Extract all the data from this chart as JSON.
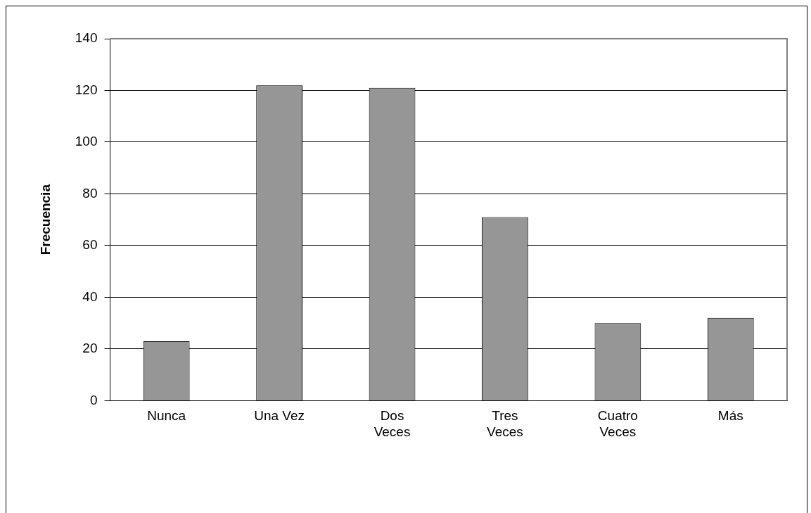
{
  "chart_data": {
    "type": "bar",
    "ylabel": "Frecuencia",
    "categories": [
      "Nunca",
      "Una Vez",
      "Dos Veces",
      "Tres Veces",
      "Cuatro Veces",
      "Más"
    ],
    "values": [
      23,
      122,
      121,
      71,
      30,
      32
    ],
    "color": "#969696",
    "ylim": [
      0,
      140
    ],
    "yticks": [
      0,
      20,
      40,
      60,
      80,
      100,
      120,
      140
    ],
    "grid": "y",
    "legend": false
  }
}
